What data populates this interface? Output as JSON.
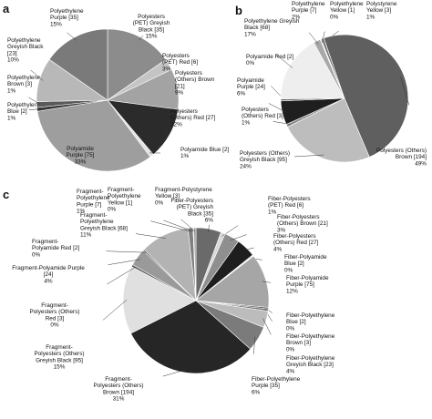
{
  "panels": [
    "a",
    "b",
    "c"
  ],
  "chart_data": [
    {
      "type": "pie",
      "panel": "a",
      "slices": [
        {
          "label": [
            "Polyesters",
            "(PET) Greyish",
            "Black [35]",
            "15%"
          ],
          "value": 35,
          "color": "#8c8c8c"
        },
        {
          "label": [
            "Polyesters",
            "(PET) Red [6]",
            "3%"
          ],
          "value": 6,
          "color": "#c4c4c4"
        },
        {
          "label": [
            "Polyesters",
            "(Others) Brown",
            "[21]",
            "9%"
          ],
          "value": 21,
          "color": "#a3a3a3"
        },
        {
          "label": [
            "Polyesters",
            "(Others) Red [27]",
            "12%"
          ],
          "value": 27,
          "color": "#2b2b2b"
        },
        {
          "label": [
            "Polyamide Blue [2]",
            "1%"
          ],
          "value": 2,
          "color": "#e3e3e3"
        },
        {
          "label": [
            "Polyamide",
            "Purple [75]",
            "33%"
          ],
          "value": 75,
          "color": "#9e9e9e"
        },
        {
          "label": [
            "Polyethylene",
            "Blue [2]",
            "1%"
          ],
          "value": 2,
          "color": "#3a3a3a"
        },
        {
          "label": [
            "Polyethylene",
            "Brown [3]",
            "1%"
          ],
          "value": 3,
          "color": "#5a5a5a"
        },
        {
          "label": [
            "Polyethylene",
            "Greyish Black",
            "[23]",
            "10%"
          ],
          "value": 23,
          "color": "#b8b8b8"
        },
        {
          "label": [
            "Polyethylene",
            "Purple [35]",
            "15%"
          ],
          "value": 35,
          "color": "#7a7a7a"
        }
      ]
    },
    {
      "type": "pie",
      "panel": "b",
      "slices": [
        {
          "label": [
            "Polystyrene",
            "Yellow [3]",
            "1%"
          ],
          "value": 3,
          "color": "#7d7d7d"
        },
        {
          "label": [
            "Polyesters (Others)",
            "Brown [194]",
            "49%"
          ],
          "value": 194,
          "color": "#5f5f5f"
        },
        {
          "label": [
            "Polyesters (Others)",
            "Greyish Black [95]",
            "24%"
          ],
          "value": 95,
          "color": "#bdbdbd"
        },
        {
          "label": [
            "Polyesters",
            "(Others) Red [3]",
            "1%"
          ],
          "value": 3,
          "color": "#8a8a8a"
        },
        {
          "label": [
            "Polyamide",
            "Purple [24]",
            "6%"
          ],
          "value": 24,
          "color": "#1f1f1f"
        },
        {
          "label": [
            "Polyamide Red [2]",
            "0%"
          ],
          "value": 2,
          "color": "#6e6e6e"
        },
        {
          "label": [
            "Polyethylene Greyish",
            "Black [68]",
            "17%"
          ],
          "value": 68,
          "color": "#eeeeee"
        },
        {
          "label": [
            "Polyethylene",
            "Purple [7]",
            "2%"
          ],
          "value": 7,
          "color": "#a8a8a8"
        },
        {
          "label": [
            "Polyethylene",
            "Yellow [1]",
            "0%"
          ],
          "value": 1,
          "color": "#d6d6d6"
        }
      ]
    },
    {
      "type": "pie",
      "panel": "c",
      "slices": [
        {
          "label": [
            "Fiber-Polyesters",
            "(PET) Greyish",
            "Black [35]",
            "6%"
          ],
          "value": 35,
          "color": "#6a6a6a"
        },
        {
          "label": [
            "Fiber-Polyesters",
            "(PET) Red [6]",
            "1%"
          ],
          "value": 6,
          "color": "#d9d9d9"
        },
        {
          "label": [
            "Fiber-Polyesters",
            "(Others) Brown [21]",
            "3%"
          ],
          "value": 21,
          "color": "#8f8f8f"
        },
        {
          "label": [
            "Fiber-Polyesters",
            "(Others) Red [27]",
            "4%"
          ],
          "value": 27,
          "color": "#1e1e1e"
        },
        {
          "label": [
            "Fiber-Polyamide",
            "Blue [2]",
            "0%"
          ],
          "value": 2,
          "color": "#efefef"
        },
        {
          "label": [
            "Fiber-Polyamide",
            "Purple [75]",
            "12%"
          ],
          "value": 75,
          "color": "#a6a6a6"
        },
        {
          "label": [
            "Fiber-Polyethylene",
            "Blue [2]",
            "0%"
          ],
          "value": 2,
          "color": "#444444"
        },
        {
          "label": [
            "Fiber-Polyethylene",
            "Brown [3]",
            "0%"
          ],
          "value": 3,
          "color": "#6f6f6f"
        },
        {
          "label": [
            "Fiber-Polyethylene",
            "Greyish Black [23]",
            "4%"
          ],
          "value": 23,
          "color": "#bcbcbc"
        },
        {
          "label": [
            "Fiber-Polyethylene",
            "Purple [35]",
            "6%"
          ],
          "value": 35,
          "color": "#7b7b7b"
        },
        {
          "label": [
            "Fragment-",
            "Polyesters (Others)",
            "Brown [194]",
            "31%"
          ],
          "value": 194,
          "color": "#262626"
        },
        {
          "label": [
            "Fragment-",
            "Polyesters (Others)",
            "Greyish Black [95]",
            "15%"
          ],
          "value": 95,
          "color": "#e0e0e0"
        },
        {
          "label": [
            "Fragment-",
            "Polyesters (Others)",
            "Red [3]",
            "0%"
          ],
          "value": 3,
          "color": "#555555"
        },
        {
          "label": [
            "Fragment-Polyamide Purple",
            "[24]",
            "4%"
          ],
          "value": 24,
          "color": "#9a9a9a"
        },
        {
          "label": [
            "Fragment-",
            "Polyamide Red [2]",
            "0%"
          ],
          "value": 2,
          "color": "#3c3c3c"
        },
        {
          "label": [
            "Fragment-",
            "Polyethylene",
            "Greyish Black [68]",
            "11%"
          ],
          "value": 68,
          "color": "#b3b3b3"
        },
        {
          "label": [
            "Fragment-",
            "Polyethylene",
            "Purple [7]",
            "1%"
          ],
          "value": 7,
          "color": "#808080"
        },
        {
          "label": [
            "Fragment-",
            "Polyethylene",
            "Yellow [1]",
            "0%"
          ],
          "value": 1,
          "color": "#c9c9c9"
        },
        {
          "label": [
            "Fragment-Polystyrene",
            "Yellow [3]",
            "0%"
          ],
          "value": 3,
          "color": "#959595"
        }
      ]
    }
  ]
}
